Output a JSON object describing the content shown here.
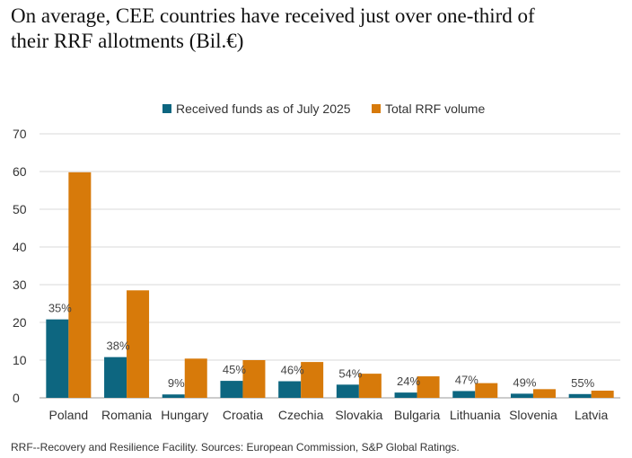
{
  "title_line1": "On average, CEE countries have received just over one-third of",
  "title_line2": "their RRF allotments (Bil.€)",
  "footnote": "RRF--Recovery and Resilience Facility. Sources: European Commission, S&P Global Ratings.",
  "colors": {
    "received": "#0d6680",
    "total": "#d77a0a",
    "grid": "#d9d9d9",
    "axis": "#999999"
  },
  "chart_data": {
    "type": "bar",
    "title": "",
    "xlabel": "",
    "ylabel": "",
    "ylim": [
      0,
      70
    ],
    "yticks": [
      0,
      10,
      20,
      30,
      40,
      50,
      60,
      70
    ],
    "grid": true,
    "legend_position": "top-center",
    "categories": [
      "Poland",
      "Romania",
      "Hungary",
      "Croatia",
      "Czechia",
      "Slovakia",
      "Bulgaria",
      "Lithuania",
      "Slovenia",
      "Latvia"
    ],
    "series": [
      {
        "name": "Received funds as of July 2025",
        "values": [
          20.8,
          10.8,
          0.9,
          4.5,
          4.4,
          3.5,
          1.4,
          1.8,
          1.1,
          1.0
        ]
      },
      {
        "name": "Total RRF volume",
        "values": [
          59.8,
          28.5,
          10.4,
          10.0,
          9.5,
          6.4,
          5.7,
          3.9,
          2.3,
          1.9
        ]
      }
    ],
    "annotations": [
      "35%",
      "38%",
      "9%",
      "45%",
      "46%",
      "54%",
      "24%",
      "47%",
      "49%",
      "55%"
    ]
  }
}
